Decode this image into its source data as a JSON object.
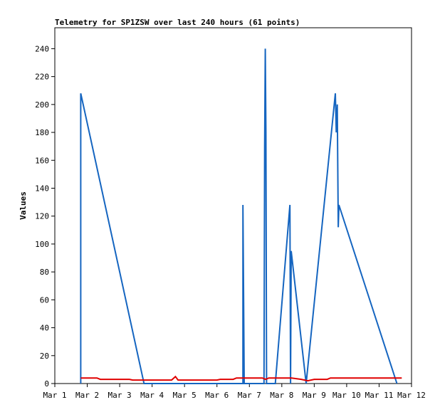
{
  "chart_data": {
    "type": "line",
    "title": "Telemetry for SP1ZSW over last 240 hours (61 points)",
    "xlabel": "",
    "ylabel": "Values",
    "x_ticks": [
      "Mar 1",
      "Mar 2",
      "Mar 3",
      "Mar 4",
      "Mar 5",
      "Mar 6",
      "Mar 7",
      "Mar 8",
      "Mar 9",
      "Mar 10",
      "Mar 11",
      "Mar 12"
    ],
    "xlim": [
      1,
      12
    ],
    "ylim": [
      0,
      255
    ],
    "y_ticks": [
      0,
      20,
      40,
      60,
      80,
      100,
      120,
      140,
      160,
      180,
      200,
      220,
      240
    ],
    "grid": false,
    "legend": "none",
    "series": [
      {
        "color": "#1565c0",
        "points": [
          [
            1.8,
            0
          ],
          [
            1.8,
            208
          ],
          [
            3.75,
            0
          ],
          [
            6.8,
            0
          ],
          [
            6.8,
            128
          ],
          [
            6.82,
            65
          ],
          [
            6.84,
            0
          ],
          [
            7.45,
            0
          ],
          [
            7.47,
            170
          ],
          [
            7.49,
            240
          ],
          [
            7.51,
            180
          ],
          [
            7.53,
            0
          ],
          [
            7.8,
            0
          ],
          [
            8.25,
            128
          ],
          [
            8.27,
            0
          ],
          [
            8.29,
            95
          ],
          [
            8.75,
            0
          ],
          [
            9.65,
            208
          ],
          [
            9.68,
            180
          ],
          [
            9.71,
            200
          ],
          [
            9.74,
            112
          ],
          [
            9.76,
            128
          ],
          [
            11.55,
            0
          ]
        ]
      },
      {
        "color": "#e00000",
        "points": [
          [
            1.8,
            4
          ],
          [
            2.3,
            4
          ],
          [
            2.4,
            3
          ],
          [
            3.3,
            3
          ],
          [
            3.4,
            2.5
          ],
          [
            4.6,
            2.5
          ],
          [
            4.72,
            5
          ],
          [
            4.8,
            2.5
          ],
          [
            6.0,
            2.5
          ],
          [
            6.1,
            3
          ],
          [
            6.5,
            3
          ],
          [
            6.6,
            4
          ],
          [
            7.4,
            4
          ],
          [
            7.5,
            3
          ],
          [
            7.6,
            4
          ],
          [
            8.3,
            4
          ],
          [
            8.6,
            3
          ],
          [
            8.8,
            2
          ],
          [
            9.0,
            3
          ],
          [
            9.4,
            3
          ],
          [
            9.5,
            4
          ],
          [
            11.7,
            4
          ]
        ]
      }
    ]
  }
}
